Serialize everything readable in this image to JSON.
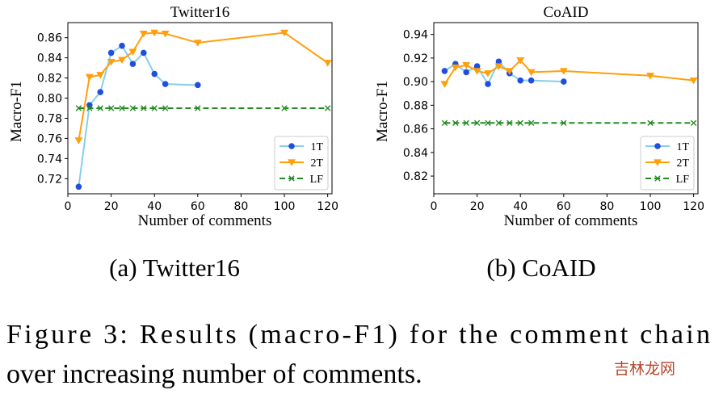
{
  "chart_data": [
    {
      "type": "line",
      "title": "Twitter16",
      "xlabel": "Number of comments",
      "ylabel": "Macro-F1",
      "xlim": [
        0,
        122
      ],
      "ylim": [
        0.705,
        0.875
      ],
      "xticks": [
        0,
        20,
        40,
        60,
        80,
        100,
        120
      ],
      "yticks": [
        0.72,
        0.74,
        0.76,
        0.78,
        0.8,
        0.82,
        0.84,
        0.86
      ],
      "legend_position": "lower-right",
      "series": [
        {
          "name": "1T",
          "color": "#1f4fe0",
          "line_color": "#87ceeb",
          "marker": "circle",
          "dash": "solid",
          "x": [
            5,
            10,
            15,
            20,
            25,
            30,
            35,
            40,
            45,
            60
          ],
          "y": [
            0.712,
            0.793,
            0.806,
            0.845,
            0.852,
            0.834,
            0.845,
            0.824,
            0.814,
            0.813
          ]
        },
        {
          "name": "2T",
          "color": "#ff9f0a",
          "line_color": "#ff9f0a",
          "marker": "triangle-down",
          "dash": "solid",
          "x": [
            5,
            10,
            15,
            20,
            25,
            30,
            35,
            40,
            45,
            60,
            100,
            120
          ],
          "y": [
            0.758,
            0.821,
            0.823,
            0.836,
            0.838,
            0.846,
            0.864,
            0.865,
            0.864,
            0.855,
            0.865,
            0.835
          ]
        },
        {
          "name": "LF",
          "color": "#228b22",
          "line_color": "#228b22",
          "marker": "x",
          "dash": "dashed",
          "x": [
            5,
            10,
            15,
            20,
            25,
            30,
            35,
            40,
            45,
            60,
            100,
            120
          ],
          "y": [
            0.79,
            0.79,
            0.79,
            0.79,
            0.79,
            0.79,
            0.79,
            0.79,
            0.79,
            0.79,
            0.79,
            0.79
          ]
        }
      ]
    },
    {
      "type": "line",
      "title": "CoAID",
      "xlabel": "Number of comments",
      "ylabel": "Macro-F1",
      "xlim": [
        0,
        122
      ],
      "ylim": [
        0.805,
        0.95
      ],
      "xticks": [
        0,
        20,
        40,
        60,
        80,
        100,
        120
      ],
      "yticks": [
        0.82,
        0.84,
        0.86,
        0.88,
        0.9,
        0.92,
        0.94
      ],
      "legend_position": "lower-right",
      "series": [
        {
          "name": "1T",
          "color": "#1f4fe0",
          "line_color": "#87ceeb",
          "marker": "circle",
          "dash": "solid",
          "x": [
            5,
            10,
            15,
            20,
            25,
            30,
            35,
            40,
            45,
            60
          ],
          "y": [
            0.909,
            0.915,
            0.908,
            0.913,
            0.898,
            0.917,
            0.907,
            0.901,
            0.901,
            0.9
          ]
        },
        {
          "name": "2T",
          "color": "#ff9f0a",
          "line_color": "#ff9f0a",
          "marker": "triangle-down",
          "dash": "solid",
          "x": [
            5,
            10,
            15,
            20,
            25,
            30,
            35,
            40,
            45,
            60,
            100,
            120
          ],
          "y": [
            0.898,
            0.912,
            0.914,
            0.909,
            0.907,
            0.913,
            0.909,
            0.918,
            0.908,
            0.909,
            0.905,
            0.901
          ]
        },
        {
          "name": "LF",
          "color": "#228b22",
          "line_color": "#228b22",
          "marker": "x",
          "dash": "dashed",
          "x": [
            5,
            10,
            15,
            20,
            25,
            30,
            35,
            40,
            45,
            60,
            100,
            120
          ],
          "y": [
            0.865,
            0.865,
            0.865,
            0.865,
            0.865,
            0.865,
            0.865,
            0.865,
            0.865,
            0.865,
            0.865,
            0.865
          ]
        }
      ]
    }
  ],
  "subcaptions": [
    "(a) Twitter16",
    "(b) CoAID"
  ],
  "caption_lines": [
    "Figure 3:  Results (macro-F1) for the comment chain",
    "over increasing number of comments."
  ],
  "watermark": "吉林龙网"
}
